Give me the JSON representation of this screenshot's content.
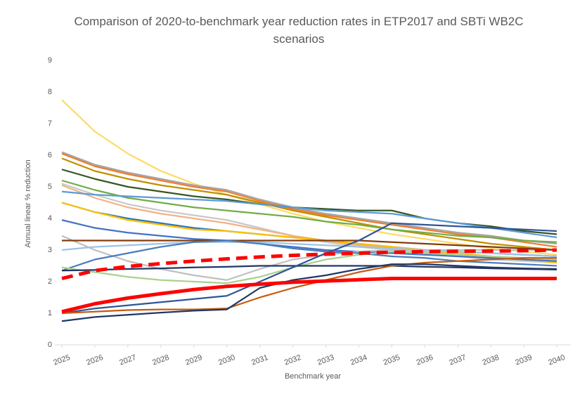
{
  "chart_data": {
    "type": "line",
    "title": "Comparison of 2020-to-benchmark year reduction rates in ETP2017 and SBTi WB2C scenarios",
    "xlabel": "Benchmark year",
    "ylabel": "Annual linear % reduction",
    "x": [
      2025,
      2026,
      2027,
      2028,
      2029,
      2030,
      2031,
      2032,
      2033,
      2034,
      2035,
      2036,
      2037,
      2038,
      2039,
      2040
    ],
    "xticks": [
      2025,
      2026,
      2027,
      2028,
      2029,
      2030,
      2031,
      2032,
      2033,
      2034,
      2035,
      2036,
      2037,
      2038,
      2039,
      2040
    ],
    "xlim": [
      2025,
      2040
    ],
    "ylim": [
      0,
      9
    ],
    "yticks": [
      0,
      1,
      2,
      3,
      4,
      5,
      6,
      7,
      8,
      9
    ],
    "grid": false,
    "series": [
      {
        "color": "#ffd966",
        "values": [
          7.75,
          6.75,
          6.05,
          5.5,
          5.1,
          4.75,
          4.45,
          4.15,
          3.9,
          3.7,
          3.5,
          3.35,
          3.2,
          3.05,
          2.95,
          2.85
        ]
      },
      {
        "color": "#a5a5a5",
        "values": [
          6.1,
          5.7,
          5.45,
          5.25,
          5.05,
          4.9,
          4.6,
          4.35,
          4.15,
          4.0,
          3.85,
          3.7,
          3.55,
          3.45,
          3.3,
          3.2
        ]
      },
      {
        "color": "#ed7d31",
        "values": [
          6.05,
          5.65,
          5.4,
          5.2,
          5.0,
          4.85,
          4.55,
          4.3,
          4.1,
          3.95,
          3.8,
          3.65,
          3.5,
          3.4,
          3.25,
          3.1
        ]
      },
      {
        "color": "#bf9000",
        "values": [
          5.9,
          5.5,
          5.25,
          5.05,
          4.9,
          4.75,
          4.5,
          4.25,
          4.05,
          3.85,
          3.65,
          3.5,
          3.35,
          3.2,
          3.1,
          3.0
        ]
      },
      {
        "color": "#375623",
        "values": [
          5.55,
          5.25,
          5.0,
          4.85,
          4.7,
          4.6,
          4.45,
          4.35,
          4.3,
          4.25,
          4.25,
          4.0,
          3.85,
          3.75,
          3.6,
          3.5
        ]
      },
      {
        "color": "#70ad47",
        "values": [
          5.2,
          4.9,
          4.65,
          4.5,
          4.35,
          4.25,
          4.15,
          4.05,
          3.9,
          3.8,
          3.65,
          3.55,
          3.45,
          3.4,
          3.3,
          3.25
        ]
      },
      {
        "color": "#c9c9c9",
        "values": [
          5.1,
          4.75,
          4.45,
          4.25,
          4.1,
          3.95,
          3.7,
          3.45,
          3.25,
          3.1,
          3.0,
          2.9,
          2.8,
          2.7,
          2.65,
          2.6
        ]
      },
      {
        "color": "#f4b183",
        "values": [
          5.05,
          4.65,
          4.35,
          4.15,
          4.0,
          3.85,
          3.65,
          3.45,
          3.3,
          3.15,
          3.05,
          2.95,
          2.85,
          2.75,
          2.7,
          2.6
        ]
      },
      {
        "color": "#5b9bd5",
        "values": [
          4.85,
          4.75,
          4.7,
          4.65,
          4.6,
          4.55,
          4.45,
          4.35,
          4.25,
          4.2,
          4.15,
          4.0,
          3.85,
          3.7,
          3.55,
          3.4
        ]
      },
      {
        "color": "#2e75b6",
        "values": [
          4.5,
          4.2,
          4.0,
          3.85,
          3.7,
          3.6,
          3.5,
          3.4,
          3.3,
          3.2,
          3.1,
          3.0,
          2.95,
          2.9,
          2.85,
          2.8
        ]
      },
      {
        "color": "#ffc000",
        "values": [
          4.5,
          4.2,
          3.95,
          3.8,
          3.65,
          3.6,
          3.5,
          3.4,
          3.3,
          3.2,
          3.1,
          3.0,
          2.9,
          2.8,
          2.7,
          2.6
        ]
      },
      {
        "color": "#4472c4",
        "values": [
          3.95,
          3.7,
          3.55,
          3.45,
          3.35,
          3.3,
          3.2,
          3.1,
          3.0,
          2.95,
          2.9,
          2.85,
          2.8,
          2.75,
          2.7,
          2.65
        ]
      },
      {
        "color": "#bfbfbf",
        "values": [
          3.45,
          3.0,
          2.65,
          2.4,
          2.2,
          2.05,
          2.4,
          2.7,
          2.85,
          2.95,
          3.0,
          3.0,
          3.0,
          3.0,
          3.0,
          3.0
        ]
      },
      {
        "color": "#9dc3e6",
        "values": [
          3.0,
          3.1,
          3.15,
          3.2,
          3.25,
          3.25,
          3.25,
          3.2,
          3.15,
          3.1,
          3.05,
          3.0,
          2.95,
          2.9,
          2.85,
          2.8
        ]
      },
      {
        "color": "#843c0c",
        "values": [
          3.3,
          3.3,
          3.3,
          3.3,
          3.3,
          3.3,
          3.3,
          3.3,
          3.3,
          3.3,
          3.25,
          3.2,
          3.15,
          3.1,
          3.05,
          3.0
        ]
      },
      {
        "color": "#4a7ebb",
        "values": [
          2.35,
          2.7,
          2.9,
          3.1,
          3.25,
          3.3,
          3.2,
          3.05,
          2.95,
          2.9,
          2.8,
          2.75,
          2.65,
          2.6,
          2.55,
          2.5
        ]
      },
      {
        "color": "#a9d18e",
        "values": [
          2.45,
          2.3,
          2.15,
          2.05,
          2.0,
          1.95,
          2.15,
          2.45,
          2.7,
          2.85,
          2.95,
          2.9,
          2.85,
          2.8,
          2.75,
          2.7
        ]
      },
      {
        "color": "#203864",
        "values": [
          2.35,
          2.37,
          2.4,
          2.42,
          2.45,
          2.47,
          2.5,
          2.5,
          2.5,
          2.5,
          2.5,
          2.47,
          2.45,
          2.42,
          2.4,
          2.38
        ]
      },
      {
        "color": "#2f5597",
        "values": [
          1.0,
          1.15,
          1.25,
          1.35,
          1.45,
          1.55,
          2.0,
          2.45,
          2.9,
          3.3,
          3.85,
          3.8,
          3.75,
          3.7,
          3.65,
          3.6
        ]
      },
      {
        "color": "#c55a11",
        "values": [
          1.0,
          1.05,
          1.1,
          1.12,
          1.12,
          1.15,
          1.5,
          1.8,
          2.05,
          2.3,
          2.5,
          2.6,
          2.65,
          2.7,
          2.75,
          2.75
        ]
      },
      {
        "color": "#1f3864",
        "values": [
          0.75,
          0.88,
          0.95,
          1.02,
          1.08,
          1.12,
          1.8,
          2.05,
          2.2,
          2.4,
          2.55,
          2.55,
          2.5,
          2.45,
          2.42,
          2.4
        ]
      },
      {
        "color": "#ff0000",
        "width": 5,
        "values": [
          1.05,
          1.3,
          1.48,
          1.62,
          1.75,
          1.85,
          1.92,
          1.98,
          2.02,
          2.06,
          2.1,
          2.1,
          2.1,
          2.1,
          2.1,
          2.1
        ]
      },
      {
        "color": "#ff0000",
        "width": 5,
        "dash": true,
        "values": [
          2.1,
          2.35,
          2.48,
          2.57,
          2.65,
          2.72,
          2.78,
          2.83,
          2.87,
          2.9,
          2.93,
          2.95,
          2.96,
          2.97,
          2.98,
          3.0
        ]
      }
    ]
  }
}
